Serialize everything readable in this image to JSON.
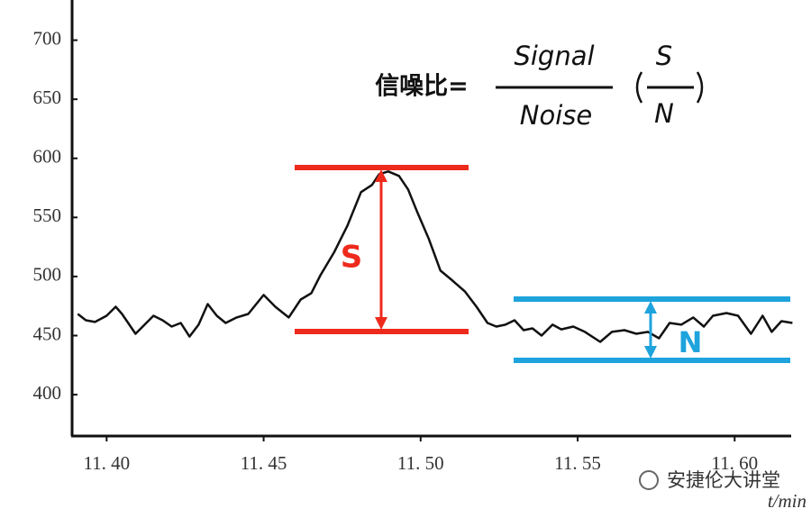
{
  "chart_data": {
    "type": "line",
    "x_label": "t/min",
    "x": [
      11.3908,
      11.3934,
      11.3963,
      11.4,
      11.4029,
      11.4049,
      11.4092,
      11.4121,
      11.4149,
      11.4178,
      11.4207,
      11.4236,
      11.4264,
      11.4293,
      11.4322,
      11.4351,
      11.4379,
      11.4414,
      11.4451,
      11.45,
      11.4537,
      11.458,
      11.4618,
      11.4652,
      11.4681,
      11.4724,
      11.4767,
      11.481,
      11.4845,
      11.4868,
      11.4897,
      11.4931,
      11.496,
      11.4989,
      11.5026,
      11.5063,
      11.5098,
      11.5141,
      11.5178,
      11.5213,
      11.5241,
      11.527,
      11.5299,
      11.5328,
      11.5356,
      11.5385,
      11.542,
      11.5448,
      11.5486,
      11.5523,
      11.5572,
      11.5609,
      11.5649,
      11.5687,
      11.5724,
      11.5759,
      11.5793,
      11.583,
      11.5868,
      11.5902,
      11.5931,
      11.5974,
      11.6011,
      11.6052,
      11.6089,
      11.6118,
      11.6149,
      11.6184
    ],
    "series": [
      {
        "color": "#111111",
        "values": [
          468.3,
          463.0,
          461.5,
          466.8,
          474.4,
          468.3,
          451.5,
          459.2,
          466.8,
          463.0,
          457.6,
          460.7,
          449.2,
          459.2,
          476.7,
          466.8,
          460.7,
          465.3,
          468.3,
          484.4,
          474.4,
          465.3,
          480.5,
          485.9,
          501.1,
          520.2,
          543.1,
          571.4,
          577.5,
          586.6,
          588.9,
          585.1,
          573.7,
          554.6,
          531.7,
          505.0,
          497.3,
          487.4,
          474.4,
          460.7,
          457.6,
          459.2,
          463.0,
          454.6,
          456.1,
          450,
          459.2,
          455.3,
          457.6,
          453.1,
          444.7,
          453.1,
          454.6,
          451.5,
          453.1,
          447.7,
          460.7,
          459.2,
          465.3,
          457.6,
          466.8,
          469.1,
          466.8,
          451.5,
          466.8,
          453.1,
          462.2,
          460.7
        ]
      }
    ],
    "xlim": [
      11.389,
      11.618
    ],
    "xticks": [
      {
        "value": 11.4,
        "label": "11. 40"
      },
      {
        "value": 11.45,
        "label": "11. 45"
      },
      {
        "value": 11.5,
        "label": "11. 50"
      },
      {
        "value": 11.55,
        "label": "11. 55"
      },
      {
        "value": 11.6,
        "label": "11. 60"
      }
    ],
    "ylim": [
      365,
      734
    ],
    "yticks": [
      400,
      450,
      500,
      550,
      600,
      650,
      700
    ],
    "annotations": {
      "formula_label": "信噪比=",
      "numerator": "Signal",
      "denominator": "Noise",
      "ratio_numerator": "S",
      "ratio_denominator": "N",
      "signal_label": "S",
      "noise_label": "N",
      "watermark": "安捷伦大讲堂"
    }
  }
}
